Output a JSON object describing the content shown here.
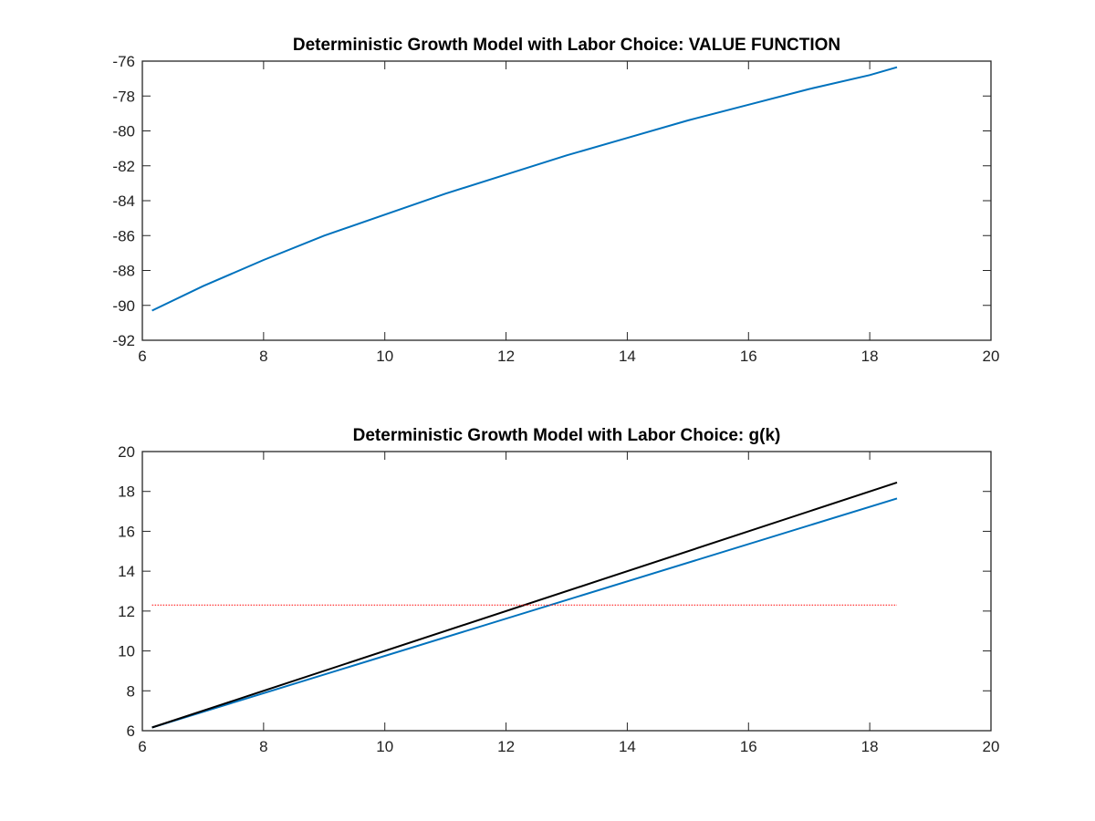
{
  "chart_data": [
    {
      "type": "line",
      "title": "Deterministic Growth Model with Labor Choice: VALUE FUNCTION",
      "xlabel": "",
      "ylabel": "",
      "xlim": [
        6,
        20
      ],
      "ylim": [
        -92,
        -76
      ],
      "xticks": [
        "6",
        "8",
        "10",
        "12",
        "14",
        "16",
        "18",
        "20"
      ],
      "yticks": [
        "-92",
        "-90",
        "-88",
        "-86",
        "-84",
        "-82",
        "-80",
        "-78",
        "-76"
      ],
      "grid": false,
      "series": [
        {
          "color": "#0072bd",
          "x": [
            6.16,
            7.0,
            8.0,
            9.0,
            10.0,
            11.0,
            12.0,
            13.0,
            14.0,
            15.0,
            16.0,
            17.0,
            18.0,
            18.45
          ],
          "y": [
            -90.3,
            -88.9,
            -87.4,
            -86.0,
            -84.8,
            -83.6,
            -82.5,
            -81.4,
            -80.4,
            -79.4,
            -78.5,
            -77.6,
            -76.8,
            -76.35
          ]
        }
      ]
    },
    {
      "type": "line",
      "title": "Deterministic Growth Model with Labor Choice: g(k)",
      "xlabel": "",
      "ylabel": "",
      "xlim": [
        6,
        20
      ],
      "ylim": [
        6,
        20
      ],
      "xticks": [
        "6",
        "8",
        "10",
        "12",
        "14",
        "16",
        "18",
        "20"
      ],
      "yticks": [
        "6",
        "8",
        "10",
        "12",
        "14",
        "16",
        "18",
        "20"
      ],
      "grid": false,
      "series": [
        {
          "color": "#0072bd",
          "x": [
            6.16,
            18.45
          ],
          "y": [
            6.16,
            17.65
          ]
        },
        {
          "color": "#000000",
          "x": [
            6.16,
            18.45
          ],
          "y": [
            6.16,
            18.45
          ]
        },
        {
          "color": "#ff0000",
          "style": "dotted",
          "x": [
            6.16,
            18.45
          ],
          "y": [
            12.3,
            12.3
          ]
        }
      ]
    }
  ]
}
